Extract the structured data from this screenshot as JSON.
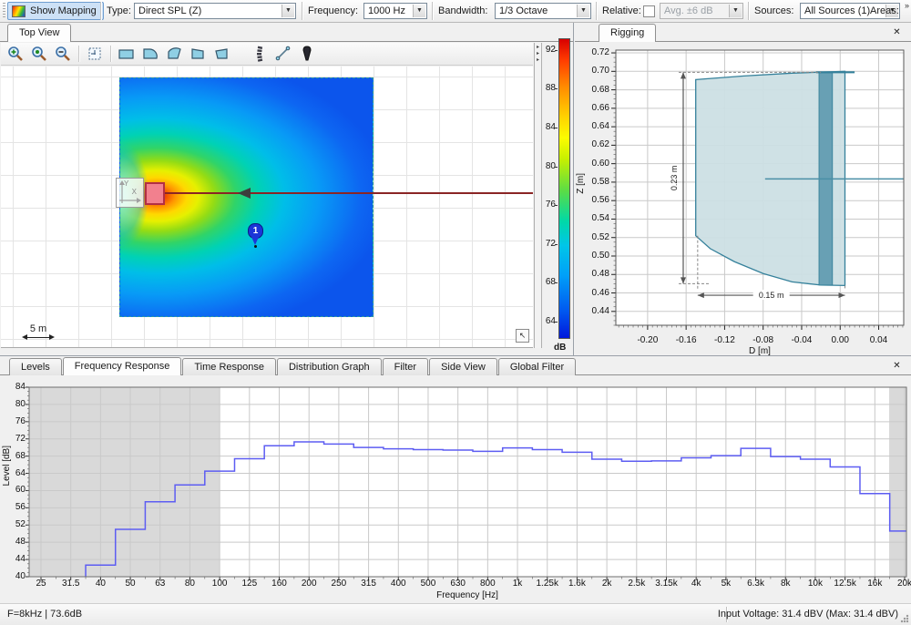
{
  "toolbar": {
    "show_mapping": "Show Mapping",
    "type_label": "Type:",
    "type_value": "Direct SPL (Z)",
    "frequency_label": "Frequency:",
    "frequency_value": "1000 Hz",
    "bandwidth_label": "Bandwidth:",
    "bandwidth_value": "1/3 Octave",
    "relative_label": "Relative:",
    "relative_avg_value": "Avg. ±6 dB",
    "sources_label": "Sources:",
    "sources_value": "All Sources (1)",
    "areas_label": "Areas:",
    "overflow": "»"
  },
  "top_view": {
    "tab": "Top View",
    "scale_label": "5 m",
    "marker_label": "1",
    "origin": {
      "x_label": "X",
      "y_label": "Y"
    },
    "colorbar": {
      "unit": "dB",
      "ticks": [
        92,
        88,
        84,
        80,
        76,
        72,
        68,
        64
      ]
    }
  },
  "rigging": {
    "tab": "Rigging",
    "close": "✕",
    "chart_data": {
      "type": "outline",
      "xlabel": "D [m]",
      "ylabel": "Z [m]",
      "xlim": [
        -0.233,
        0.066
      ],
      "ylim": [
        0.425,
        0.723
      ],
      "x_ticks": [
        "-0.20",
        "-0.16",
        "-0.12",
        "-0.08",
        "-0.04",
        "0.00",
        "0.04"
      ],
      "y_ticks": [
        "0.72",
        "0.70",
        "0.68",
        "0.66",
        "0.64",
        "0.62",
        "0.60",
        "0.58",
        "0.56",
        "0.54",
        "0.52",
        "0.50",
        "0.48",
        "0.46",
        "0.44"
      ],
      "cabinet_outline": [
        [
          -0.15,
          0.691
        ],
        [
          -0.1,
          0.695
        ],
        [
          -0.05,
          0.698
        ],
        [
          0.005,
          0.7
        ],
        [
          0.005,
          0.468
        ],
        [
          -0.02,
          0.4685
        ],
        [
          -0.05,
          0.472
        ],
        [
          -0.08,
          0.481
        ],
        [
          -0.11,
          0.494
        ],
        [
          -0.135,
          0.508
        ],
        [
          -0.15,
          0.522
        ]
      ],
      "grille_band": {
        "d1": -0.022,
        "d2": -0.008,
        "z1": 0.4685,
        "z2": 0.6985
      },
      "top_cap": {
        "d1": -0.025,
        "d2": 0.015,
        "z": 0.699
      },
      "aim_line": {
        "z": 0.5835,
        "d_start": -0.078
      },
      "dim_height": {
        "label": "0.23 m",
        "d": -0.163,
        "z_top": 0.699,
        "z_bottom": 0.47
      },
      "dim_width": {
        "label": "0.15 m",
        "z": 0.4575,
        "d_left": -0.148,
        "d_right": 0.005
      }
    }
  },
  "bottom": {
    "tabs": [
      "Levels",
      "Frequency Response",
      "Time Response",
      "Distribution Graph",
      "Filter",
      "Side View",
      "Global Filter"
    ],
    "active_tab": "Frequency Response",
    "close": "✕",
    "chart_data": {
      "type": "step-line",
      "xlabel": "Frequency [Hz]",
      "ylabel": "Level [dB]",
      "ylim": [
        40,
        84
      ],
      "y_ticks": [
        84,
        80,
        76,
        72,
        68,
        64,
        60,
        56,
        52,
        48,
        44,
        40
      ],
      "x_tick_labels": [
        "25",
        "31.5",
        "40",
        "50",
        "63",
        "80",
        "100",
        "125",
        "160",
        "200",
        "250",
        "315",
        "400",
        "500",
        "630",
        "800",
        "1k",
        "1.25k",
        "1.6k",
        "2k",
        "2.5k",
        "3.15k",
        "4k",
        "5k",
        "6.3k",
        "8k",
        "10k",
        "12.5k",
        "16k",
        "20k"
      ],
      "bands_hz": [
        25,
        31.5,
        40,
        50,
        63,
        80,
        100,
        125,
        160,
        200,
        250,
        315,
        400,
        500,
        630,
        800,
        1000,
        1250,
        1600,
        2000,
        2500,
        3150,
        4000,
        5000,
        6300,
        8000,
        10000,
        12500,
        16000,
        20000
      ],
      "values_db": [
        null,
        null,
        42.7,
        51.0,
        57.4,
        61.3,
        64.5,
        67.4,
        70.4,
        71.3,
        70.8,
        70.0,
        69.7,
        69.5,
        69.4,
        69.1,
        69.9,
        69.5,
        68.9,
        67.3,
        66.8,
        66.9,
        67.6,
        68.1,
        69.8,
        67.9,
        67.3,
        65.5,
        59.3,
        50.6
      ],
      "shaded_left_end_band_index": 6,
      "shaded_right_start_band_index": 28.48,
      "line_color": "#5d5df2",
      "shade_color": "#d9d9d9"
    }
  },
  "status": {
    "left": "F=8kHz | 73.6dB",
    "right": "Input Voltage: 31.4 dBV (Max: 31.4 dBV)"
  }
}
